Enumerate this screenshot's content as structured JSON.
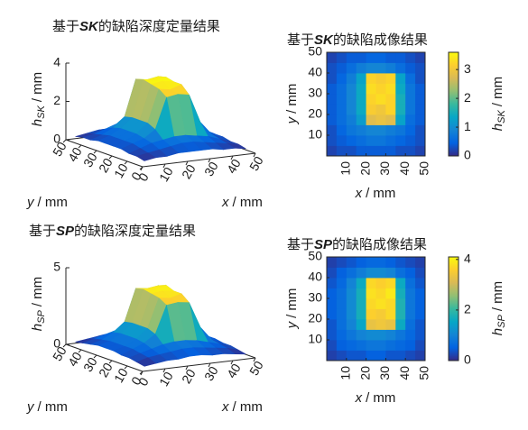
{
  "chart_data": [
    {
      "type": "surface",
      "title": [
        "基于",
        "SK",
        "的缺陷深度定量结果"
      ],
      "x": [
        2.5,
        7.5,
        12.5,
        17.5,
        22.5,
        27.5,
        32.5,
        37.5,
        42.5,
        47.5
      ],
      "y": [
        2.5,
        7.5,
        12.5,
        17.5,
        22.5,
        27.5,
        32.5,
        37.5,
        42.5,
        47.5
      ],
      "z": [
        [
          0.2,
          0.3,
          0.3,
          0.4,
          0.4,
          0.4,
          0.4,
          0.3,
          0.3,
          0.2
        ],
        [
          0.3,
          0.4,
          0.5,
          0.6,
          0.7,
          0.7,
          0.6,
          0.5,
          0.4,
          0.3
        ],
        [
          0.3,
          0.5,
          0.7,
          0.8,
          0.9,
          0.9,
          0.8,
          0.7,
          0.5,
          0.3
        ],
        [
          0.4,
          0.6,
          0.8,
          1.2,
          2.8,
          2.9,
          2.8,
          1.3,
          0.6,
          0.4
        ],
        [
          0.4,
          0.6,
          0.9,
          1.4,
          3.1,
          3.0,
          3.2,
          1.5,
          0.7,
          0.4
        ],
        [
          0.4,
          0.6,
          0.9,
          1.4,
          3.2,
          3.3,
          3.2,
          1.5,
          0.7,
          0.4
        ],
        [
          0.4,
          0.6,
          0.9,
          1.4,
          3.3,
          3.2,
          3.3,
          1.4,
          0.7,
          0.4
        ],
        [
          0.3,
          0.5,
          0.8,
          1.3,
          3.2,
          3.1,
          3.2,
          1.3,
          0.6,
          0.3
        ],
        [
          0.3,
          0.4,
          0.6,
          0.8,
          0.9,
          0.9,
          0.8,
          0.6,
          0.4,
          0.3
        ],
        [
          0.2,
          0.3,
          0.4,
          0.4,
          0.5,
          0.5,
          0.4,
          0.4,
          0.3,
          0.2
        ]
      ],
      "xlim": [
        0,
        50
      ],
      "ylim": [
        0,
        50
      ],
      "zlim": [
        0,
        4
      ],
      "xticks": [
        0,
        10,
        20,
        30,
        40,
        50
      ],
      "yticks": [
        0,
        10,
        20,
        30,
        40,
        50
      ],
      "zticks": [
        0,
        2,
        4
      ],
      "xlabel": [
        "x",
        "/ mm"
      ],
      "ylabel": [
        "y",
        "/ mm"
      ],
      "zlabel": [
        "h",
        "SK",
        "/ mm"
      ],
      "colormap": "parula"
    },
    {
      "type": "image",
      "title": [
        "基于",
        "SK",
        "的缺陷成像结果"
      ],
      "x": [
        2.5,
        7.5,
        12.5,
        17.5,
        22.5,
        27.5,
        32.5,
        37.5,
        42.5,
        47.5
      ],
      "y": [
        2.5,
        7.5,
        12.5,
        17.5,
        22.5,
        27.5,
        32.5,
        37.5,
        42.5,
        47.5
      ],
      "z": [
        [
          0.2,
          0.3,
          0.3,
          0.4,
          0.4,
          0.4,
          0.4,
          0.3,
          0.3,
          0.2
        ],
        [
          0.3,
          0.4,
          0.5,
          0.6,
          0.7,
          0.7,
          0.6,
          0.5,
          0.4,
          0.3
        ],
        [
          0.3,
          0.5,
          0.7,
          0.8,
          0.9,
          0.9,
          0.8,
          0.7,
          0.5,
          0.3
        ],
        [
          0.4,
          0.6,
          0.8,
          1.2,
          2.8,
          2.9,
          2.8,
          1.3,
          0.6,
          0.4
        ],
        [
          0.4,
          0.6,
          0.9,
          1.4,
          3.1,
          3.0,
          3.2,
          1.5,
          0.7,
          0.4
        ],
        [
          0.4,
          0.6,
          0.9,
          1.4,
          3.2,
          3.3,
          3.2,
          1.5,
          0.7,
          0.4
        ],
        [
          0.4,
          0.6,
          0.9,
          1.4,
          3.3,
          3.2,
          3.3,
          1.4,
          0.7,
          0.4
        ],
        [
          0.3,
          0.5,
          0.8,
          1.3,
          3.2,
          3.1,
          3.2,
          1.3,
          0.6,
          0.3
        ],
        [
          0.3,
          0.4,
          0.6,
          0.8,
          0.9,
          0.9,
          0.8,
          0.6,
          0.4,
          0.3
        ],
        [
          0.2,
          0.3,
          0.4,
          0.4,
          0.5,
          0.5,
          0.4,
          0.4,
          0.3,
          0.2
        ]
      ],
      "xlim": [
        0,
        50
      ],
      "ylim": [
        0,
        50
      ],
      "clim": [
        0,
        3.6
      ],
      "xticks": [
        10,
        20,
        30,
        40,
        50
      ],
      "yticks": [
        10,
        20,
        30,
        40,
        50
      ],
      "cticks": [
        0,
        1,
        2,
        3
      ],
      "xlabel": [
        "x",
        "/ mm"
      ],
      "ylabel": [
        "y",
        "/ mm"
      ],
      "clabel": [
        "h",
        "SK",
        "/ mm"
      ],
      "colormap": "parula"
    },
    {
      "type": "surface",
      "title": [
        "基于",
        "SP",
        "的缺陷深度定量结果"
      ],
      "x": [
        2.5,
        7.5,
        12.5,
        17.5,
        22.5,
        27.5,
        32.5,
        37.5,
        42.5,
        47.5
      ],
      "y": [
        2.5,
        7.5,
        12.5,
        17.5,
        22.5,
        27.5,
        32.5,
        37.5,
        42.5,
        47.5
      ],
      "z": [
        [
          0.2,
          0.3,
          0.4,
          0.4,
          0.5,
          0.5,
          0.4,
          0.4,
          0.3,
          0.2
        ],
        [
          0.3,
          0.5,
          0.6,
          0.7,
          0.8,
          0.8,
          0.7,
          0.6,
          0.5,
          0.3
        ],
        [
          0.4,
          0.6,
          0.8,
          1.0,
          1.1,
          1.1,
          1.0,
          0.8,
          0.6,
          0.4
        ],
        [
          0.4,
          0.7,
          1.0,
          1.5,
          3.3,
          3.4,
          3.3,
          1.6,
          0.7,
          0.4
        ],
        [
          0.5,
          0.7,
          1.1,
          1.7,
          3.6,
          3.5,
          3.7,
          1.8,
          0.8,
          0.5
        ],
        [
          0.5,
          0.7,
          1.1,
          1.7,
          3.7,
          3.8,
          3.7,
          1.8,
          0.8,
          0.5
        ],
        [
          0.5,
          0.7,
          1.1,
          1.7,
          3.8,
          3.7,
          3.9,
          1.7,
          0.8,
          0.5
        ],
        [
          0.4,
          0.6,
          1.0,
          1.6,
          3.7,
          3.6,
          3.7,
          1.6,
          0.7,
          0.4
        ],
        [
          0.3,
          0.5,
          0.7,
          0.9,
          1.1,
          1.1,
          1.0,
          0.7,
          0.5,
          0.3
        ],
        [
          0.2,
          0.3,
          0.4,
          0.5,
          0.6,
          0.6,
          0.5,
          0.4,
          0.3,
          0.2
        ]
      ],
      "xlim": [
        0,
        50
      ],
      "ylim": [
        0,
        50
      ],
      "zlim": [
        0,
        5
      ],
      "xticks": [
        0,
        10,
        20,
        30,
        40,
        50
      ],
      "yticks": [
        0,
        10,
        20,
        30,
        40,
        50
      ],
      "zticks": [
        0,
        5
      ],
      "xlabel": [
        "x",
        "/ mm"
      ],
      "ylabel": [
        "y",
        "/ mm"
      ],
      "zlabel": [
        "h",
        "SP",
        "/ mm"
      ],
      "colormap": "parula"
    },
    {
      "type": "image",
      "title": [
        "基于",
        "SP",
        "的缺陷成像结果"
      ],
      "x": [
        2.5,
        7.5,
        12.5,
        17.5,
        22.5,
        27.5,
        32.5,
        37.5,
        42.5,
        47.5
      ],
      "y": [
        2.5,
        7.5,
        12.5,
        17.5,
        22.5,
        27.5,
        32.5,
        37.5,
        42.5,
        47.5
      ],
      "z": [
        [
          0.2,
          0.3,
          0.4,
          0.4,
          0.5,
          0.5,
          0.4,
          0.4,
          0.3,
          0.2
        ],
        [
          0.3,
          0.5,
          0.6,
          0.7,
          0.8,
          0.8,
          0.7,
          0.6,
          0.5,
          0.3
        ],
        [
          0.4,
          0.6,
          0.8,
          1.0,
          1.1,
          1.1,
          1.0,
          0.8,
          0.6,
          0.4
        ],
        [
          0.4,
          0.7,
          1.0,
          1.5,
          3.3,
          3.4,
          3.3,
          1.6,
          0.7,
          0.4
        ],
        [
          0.5,
          0.7,
          1.1,
          1.7,
          3.6,
          3.5,
          3.7,
          1.8,
          0.8,
          0.5
        ],
        [
          0.5,
          0.7,
          1.1,
          1.7,
          3.7,
          3.8,
          3.7,
          1.8,
          0.8,
          0.5
        ],
        [
          0.5,
          0.7,
          1.1,
          1.7,
          3.8,
          3.7,
          3.9,
          1.7,
          0.8,
          0.5
        ],
        [
          0.4,
          0.6,
          1.0,
          1.6,
          3.7,
          3.6,
          3.7,
          1.6,
          0.7,
          0.4
        ],
        [
          0.3,
          0.5,
          0.7,
          0.9,
          1.1,
          1.1,
          1.0,
          0.7,
          0.5,
          0.3
        ],
        [
          0.2,
          0.3,
          0.4,
          0.5,
          0.6,
          0.6,
          0.5,
          0.4,
          0.3,
          0.2
        ]
      ],
      "xlim": [
        0,
        50
      ],
      "ylim": [
        0,
        50
      ],
      "clim": [
        0,
        4.1
      ],
      "xticks": [
        10,
        20,
        30,
        40,
        50
      ],
      "yticks": [
        10,
        20,
        30,
        40,
        50
      ],
      "cticks": [
        0,
        2,
        4
      ],
      "xlabel": [
        "x",
        "/ mm"
      ],
      "ylabel": [
        "y",
        "/ mm"
      ],
      "clabel": [
        "h",
        "SP",
        "/ mm"
      ],
      "colormap": "parula"
    }
  ]
}
